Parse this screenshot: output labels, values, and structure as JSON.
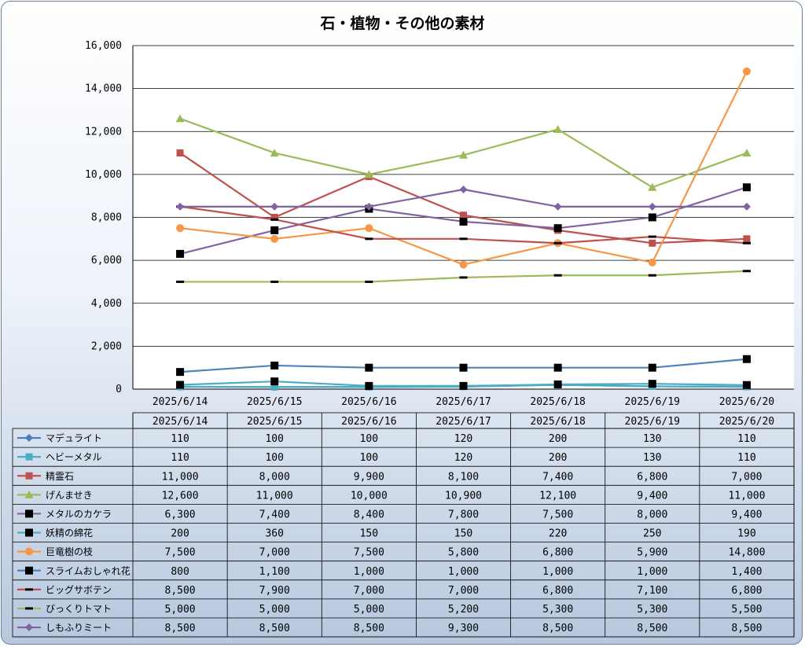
{
  "chart_data": {
    "type": "line",
    "title": "石・植物・その他の素材",
    "categories": [
      "2025/6/14",
      "2025/6/15",
      "2025/6/16",
      "2025/6/17",
      "2025/6/18",
      "2025/6/19",
      "2025/6/20"
    ],
    "ylim": [
      0,
      16000
    ],
    "yticks": [
      0,
      2000,
      4000,
      6000,
      8000,
      10000,
      12000,
      14000,
      16000
    ],
    "ytick_labels": [
      "0",
      "2,000",
      "4,000",
      "6,000",
      "8,000",
      "10,000",
      "12,000",
      "14,000",
      "16,000"
    ],
    "grid": true,
    "legend": "data-table-below",
    "series": [
      {
        "name": "マデュライト",
        "color": "#4a7ebb",
        "marker": "diamond",
        "values": [
          110,
          100,
          100,
          120,
          200,
          130,
          110
        ],
        "labels": [
          "110",
          "100",
          "100",
          "120",
          "200",
          "130",
          "110"
        ]
      },
      {
        "name": "ヘビーメタル",
        "color": "#4bacc6",
        "marker": "square",
        "values": [
          110,
          100,
          100,
          120,
          200,
          130,
          110
        ],
        "labels": [
          "110",
          "100",
          "100",
          "120",
          "200",
          "130",
          "110"
        ]
      },
      {
        "name": "精霊石",
        "color": "#c0504d",
        "marker": "square",
        "values": [
          11000,
          8000,
          9900,
          8100,
          7400,
          6800,
          7000
        ],
        "labels": [
          "11,000",
          "8,000",
          "9,900",
          "8,100",
          "7,400",
          "6,800",
          "7,000"
        ]
      },
      {
        "name": "げんませき",
        "color": "#9bbb59",
        "marker": "triangle",
        "values": [
          12600,
          11000,
          10000,
          10900,
          12100,
          9400,
          11000
        ],
        "labels": [
          "12,600",
          "11,000",
          "10,000",
          "10,900",
          "12,100",
          "9,400",
          "11,000"
        ]
      },
      {
        "name": "メタルのカケラ",
        "color": "#8064a2",
        "marker": "blacksquare",
        "values": [
          6300,
          7400,
          8400,
          7800,
          7500,
          8000,
          9400
        ],
        "labels": [
          "6,300",
          "7,400",
          "8,400",
          "7,800",
          "7,500",
          "8,000",
          "9,400"
        ]
      },
      {
        "name": "妖精の綿花",
        "color": "#4bacc6",
        "marker": "blacksquare",
        "values": [
          200,
          360,
          150,
          150,
          220,
          250,
          190
        ],
        "labels": [
          "200",
          "360",
          "150",
          "150",
          "220",
          "250",
          "190"
        ]
      },
      {
        "name": "巨竜樹の枝",
        "color": "#f79646",
        "marker": "circle",
        "values": [
          7500,
          7000,
          7500,
          5800,
          6800,
          5900,
          14800
        ],
        "labels": [
          "7,500",
          "7,000",
          "7,500",
          "5,800",
          "6,800",
          "5,900",
          "14,800"
        ]
      },
      {
        "name": "スライムおしゃれ花",
        "color": "#4f81bd",
        "marker": "blacksquare",
        "values": [
          800,
          1100,
          1000,
          1000,
          1000,
          1000,
          1400
        ],
        "labels": [
          "800",
          "1,100",
          "1,000",
          "1,000",
          "1,000",
          "1,000",
          "1,400"
        ]
      },
      {
        "name": "ビッグサボテン",
        "color": "#c0504d",
        "marker": "dash",
        "values": [
          8500,
          7900,
          7000,
          7000,
          6800,
          7100,
          6800
        ],
        "labels": [
          "8,500",
          "7,900",
          "7,000",
          "7,000",
          "6,800",
          "7,100",
          "6,800"
        ]
      },
      {
        "name": "びっくりトマト",
        "color": "#9bbb59",
        "marker": "dash",
        "values": [
          5000,
          5000,
          5000,
          5200,
          5300,
          5300,
          5500
        ],
        "labels": [
          "5,000",
          "5,000",
          "5,000",
          "5,200",
          "5,300",
          "5,300",
          "5,500"
        ]
      },
      {
        "name": "しもふりミート",
        "color": "#8064a2",
        "marker": "diamond",
        "values": [
          8500,
          8500,
          8500,
          9300,
          8500,
          8500,
          8500
        ],
        "labels": [
          "8,500",
          "8,500",
          "8,500",
          "9,300",
          "8,500",
          "8,500",
          "8,500"
        ]
      }
    ]
  }
}
